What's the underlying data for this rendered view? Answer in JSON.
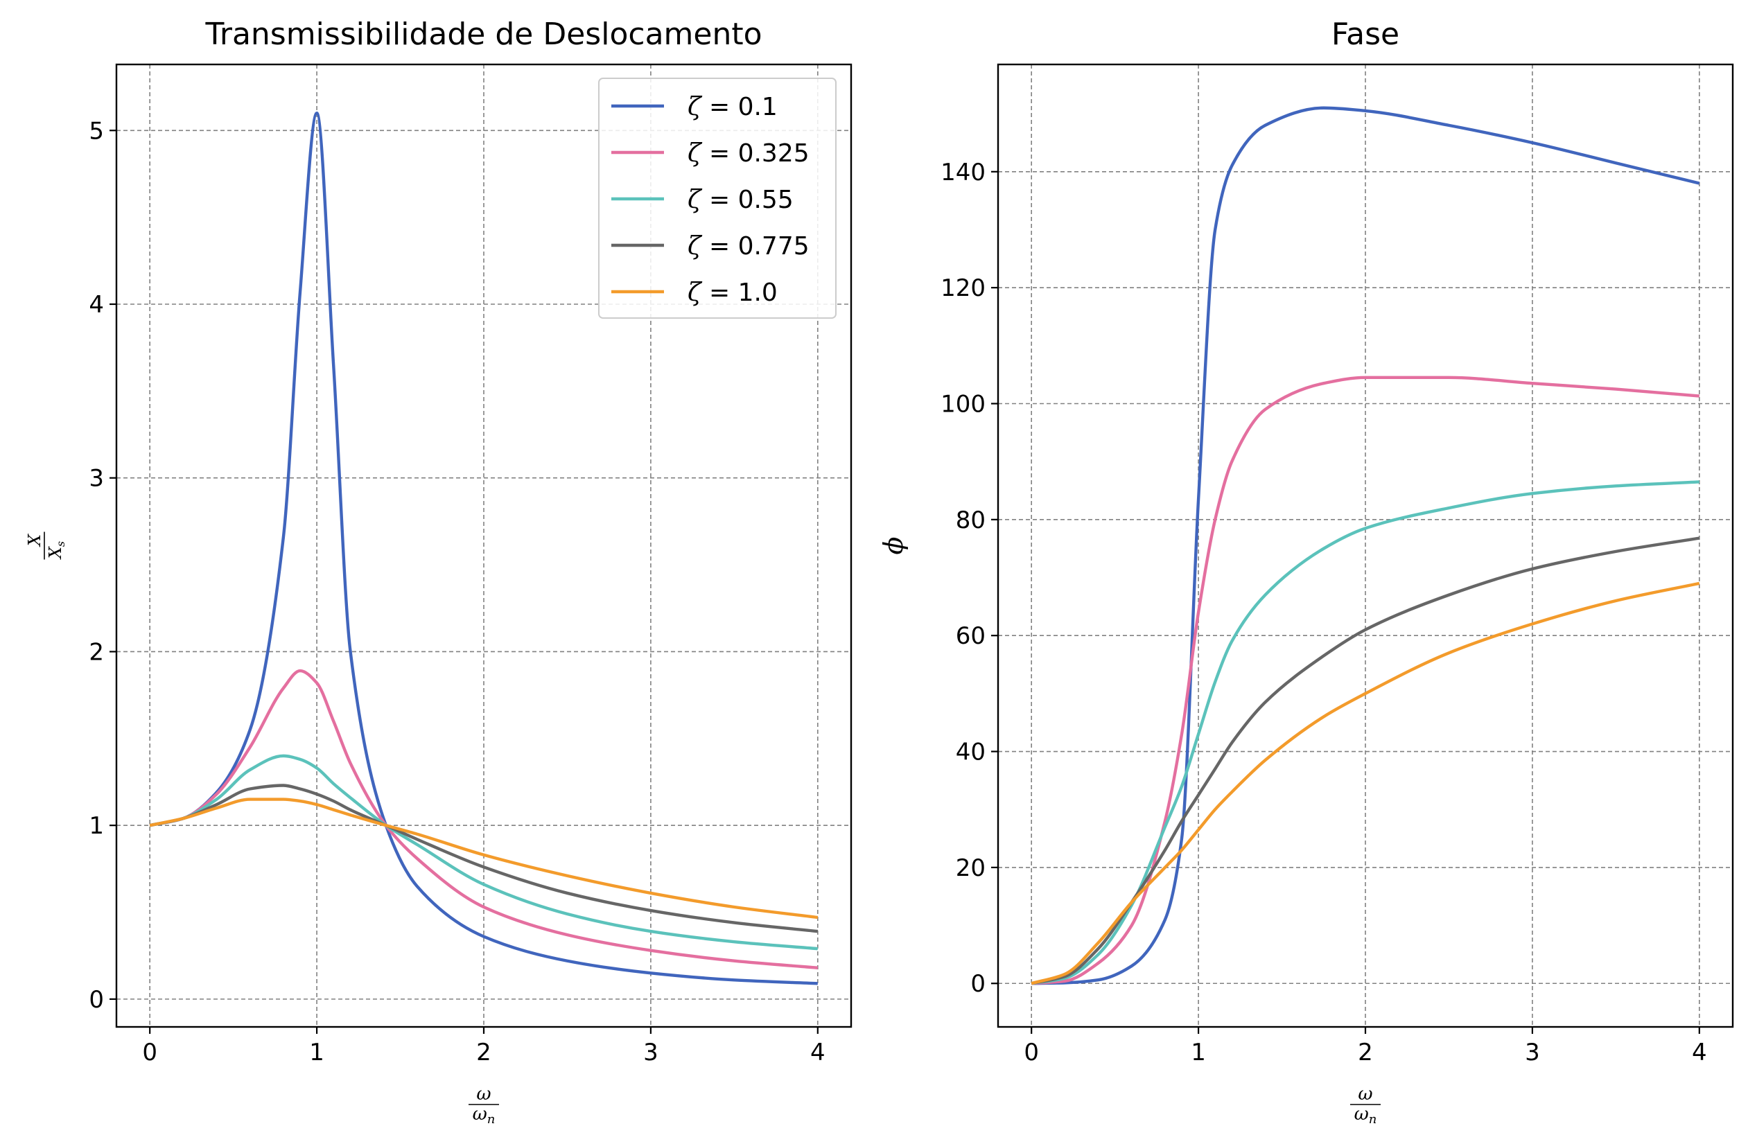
{
  "chart_data": [
    {
      "type": "line",
      "title": "Transmissibilidade de Deslocamento",
      "xlabel": {
        "numerator": "ω",
        "denominator": "ωn",
        "denominator_base": "ω",
        "denominator_sub": "n"
      },
      "ylabel": {
        "numerator": "X",
        "denominator": "Xs",
        "denominator_base": "X",
        "denominator_sub": "s"
      },
      "xlim": [
        -0.2,
        4.2
      ],
      "ylim": [
        -0.16,
        5.38
      ],
      "xticks": [
        0,
        1,
        2,
        3,
        4
      ],
      "yticks": [
        0,
        1,
        2,
        3,
        4,
        5
      ],
      "grid": true,
      "legend": "top-right",
      "x": [
        0,
        0.2,
        0.4,
        0.6,
        0.8,
        0.9,
        1.0,
        1.1,
        1.2,
        1.414,
        1.6,
        2.0,
        2.5,
        3.0,
        3.5,
        4.0
      ],
      "series": [
        {
          "name": "ζ = 0.1",
          "zeta_symbol": "ζ",
          "zeta_value": "0.1",
          "color": "#4065bd",
          "values": [
            1.0,
            1.04,
            1.19,
            1.55,
            2.66,
            4.07,
            5.1,
            3.65,
            2.01,
            1.0,
            0.65,
            0.36,
            0.22,
            0.15,
            0.11,
            0.09
          ]
        },
        {
          "name": "ζ = 0.325",
          "zeta_symbol": "ζ",
          "zeta_value": "0.325",
          "color": "#e46f9f",
          "values": [
            1.0,
            1.04,
            1.18,
            1.45,
            1.79,
            1.89,
            1.82,
            1.6,
            1.36,
            1.0,
            0.81,
            0.53,
            0.37,
            0.28,
            0.22,
            0.18
          ]
        },
        {
          "name": "ζ = 0.55",
          "zeta_symbol": "ζ",
          "zeta_value": "0.55",
          "color": "#5bc2bb",
          "values": [
            1.0,
            1.04,
            1.15,
            1.32,
            1.4,
            1.38,
            1.33,
            1.24,
            1.16,
            1.0,
            0.89,
            0.66,
            0.49,
            0.39,
            0.33,
            0.29
          ]
        },
        {
          "name": "ζ = 0.775",
          "zeta_symbol": "ζ",
          "zeta_value": "0.775",
          "color": "#666666",
          "values": [
            1.0,
            1.04,
            1.12,
            1.21,
            1.23,
            1.21,
            1.18,
            1.14,
            1.09,
            1.0,
            0.92,
            0.76,
            0.61,
            0.51,
            0.44,
            0.39
          ]
        },
        {
          "name": "ζ = 1.0",
          "zeta_symbol": "ζ",
          "zeta_value": "1.0",
          "color": "#f39b2b",
          "values": [
            1.0,
            1.04,
            1.1,
            1.15,
            1.15,
            1.14,
            1.12,
            1.09,
            1.06,
            1.0,
            0.95,
            0.83,
            0.71,
            0.61,
            0.53,
            0.47
          ]
        }
      ]
    },
    {
      "type": "line",
      "title": "Fase",
      "xlabel": {
        "numerator": "ω",
        "denominator": "ωn",
        "denominator_base": "ω",
        "denominator_sub": "n"
      },
      "ylabel": "ϕ",
      "xlim": [
        -0.2,
        4.2
      ],
      "ylim": [
        -7.5,
        158.5
      ],
      "xticks": [
        0,
        1,
        2,
        3,
        4
      ],
      "yticks": [
        0,
        20,
        40,
        60,
        80,
        100,
        120,
        140
      ],
      "grid": true,
      "x": [
        0,
        0.2,
        0.4,
        0.6,
        0.8,
        0.9,
        1.0,
        1.1,
        1.2,
        1.4,
        1.75,
        2.0,
        2.5,
        3.0,
        3.5,
        4.0
      ],
      "series": [
        {
          "name": "ζ = 0.1",
          "color": "#4065bd",
          "values": [
            0,
            0.1,
            0.6,
            3.0,
            11.0,
            25.0,
            83.5,
            130.0,
            141.0,
            148.0,
            151.0,
            150.5,
            148.0,
            145.0,
            141.5,
            138.0
          ]
        },
        {
          "name": "ζ = 0.325",
          "color": "#e46f9f",
          "values": [
            0,
            0.4,
            3.5,
            10.0,
            28.0,
            43.0,
            64.0,
            80.0,
            90.0,
            99.0,
            103.5,
            104.5,
            104.5,
            103.5,
            102.5,
            101.3
          ]
        },
        {
          "name": "ζ = 0.55",
          "color": "#5bc2bb",
          "values": [
            0,
            0.9,
            5.0,
            13.5,
            27.0,
            34.0,
            43.0,
            52.0,
            59.0,
            67.0,
            75.0,
            78.5,
            82.0,
            84.5,
            85.8,
            86.5
          ]
        },
        {
          "name": "ζ = 0.775",
          "color": "#666666",
          "values": [
            0,
            1.2,
            6.0,
            14.0,
            23.0,
            28.0,
            32.5,
            37.0,
            41.5,
            48.5,
            56.5,
            61.0,
            67.0,
            71.5,
            74.5,
            76.8
          ]
        },
        {
          "name": "ζ = 1.0",
          "color": "#f39b2b",
          "values": [
            0,
            1.6,
            7.0,
            14.0,
            20.0,
            23.0,
            26.5,
            30.0,
            33.0,
            38.5,
            46.0,
            50.0,
            57.0,
            62.0,
            66.0,
            69.0
          ]
        }
      ]
    }
  ]
}
